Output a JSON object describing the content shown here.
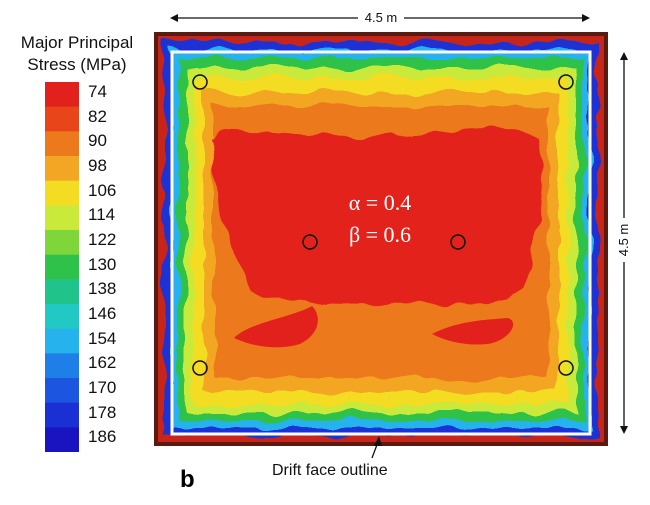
{
  "legend": {
    "title_line1": "Major Principal",
    "title_line2": "Stress (MPa)",
    "levels": [
      {
        "label": "74",
        "color": "#e3211c"
      },
      {
        "label": "82",
        "color": "#e8461a"
      },
      {
        "label": "90",
        "color": "#ec7a1c"
      },
      {
        "label": "98",
        "color": "#f2a623"
      },
      {
        "label": "106",
        "color": "#f3dc22"
      },
      {
        "label": "114",
        "color": "#c9ea3b"
      },
      {
        "label": "122",
        "color": "#7fd63b"
      },
      {
        "label": "130",
        "color": "#2fc24a"
      },
      {
        "label": "138",
        "color": "#20c48a"
      },
      {
        "label": "146",
        "color": "#22c9c4"
      },
      {
        "label": "154",
        "color": "#26b2ec"
      },
      {
        "label": "162",
        "color": "#1f7fe8"
      },
      {
        "label": "170",
        "color": "#1c55e0"
      },
      {
        "label": "178",
        "color": "#1a30d4"
      },
      {
        "label": "186",
        "color": "#1a14c0"
      }
    ]
  },
  "dimensions": {
    "width_label": "4.5 m",
    "height_label": "4.5 m"
  },
  "parameters": {
    "alpha_line": "α = 0.4",
    "beta_line": "β = 0.6"
  },
  "panel_label": "b",
  "outline_caption": "Drift face outline",
  "colors": {
    "outer_dark": "#5a1a10",
    "outline": "#ffffff"
  }
}
